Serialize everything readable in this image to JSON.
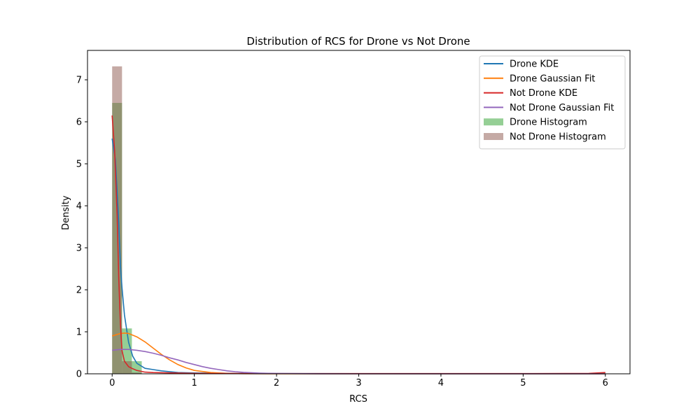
{
  "chart_data": {
    "type": "histogram+line",
    "title": "Distribution of RCS for Drone vs Not Drone",
    "xlabel": "RCS",
    "ylabel": "Density",
    "xlim": [
      -0.3,
      6.3
    ],
    "ylim": [
      0,
      7.7
    ],
    "x_ticks": [
      0,
      1,
      2,
      3,
      4,
      5,
      6
    ],
    "y_ticks": [
      0,
      1,
      2,
      3,
      4,
      5,
      6,
      7
    ],
    "grid": false,
    "legend_position": "top-right",
    "histograms": [
      {
        "name": "Drone Histogram",
        "color": "#2ca02c",
        "opacity": 0.5,
        "bins": [
          {
            "x0": 0.0,
            "x1": 0.12,
            "density": 6.45
          },
          {
            "x0": 0.12,
            "x1": 0.24,
            "density": 1.08
          },
          {
            "x0": 0.24,
            "x1": 0.36,
            "density": 0.3
          }
        ]
      },
      {
        "name": "Not Drone Histogram",
        "color": "#8c564b",
        "opacity": 0.5,
        "bins": [
          {
            "x0": 0.0,
            "x1": 0.12,
            "density": 7.32
          },
          {
            "x0": 0.12,
            "x1": 0.24,
            "density": 0.3
          },
          {
            "x0": 0.24,
            "x1": 0.36,
            "density": 0.03
          }
        ]
      }
    ],
    "series": [
      {
        "name": "Drone KDE",
        "color": "#1f77b4",
        "x": [
          0,
          0.04,
          0.08,
          0.1,
          0.12,
          0.15,
          0.2,
          0.25,
          0.3,
          0.4,
          0.5,
          0.6,
          0.8,
          1.0,
          1.5,
          2,
          3,
          4,
          5,
          6
        ],
        "y": [
          5.6,
          5.1,
          3.6,
          2.6,
          2.05,
          1.4,
          0.75,
          0.42,
          0.25,
          0.13,
          0.1,
          0.07,
          0.03,
          0.02,
          0.01,
          0.005,
          0.003,
          0.002,
          0.002,
          0.002
        ]
      },
      {
        "name": "Drone Gaussian Fit",
        "color": "#ff7f0e",
        "x": [
          0,
          0.05,
          0.1,
          0.15,
          0.2,
          0.3,
          0.4,
          0.5,
          0.6,
          0.7,
          0.8,
          0.9,
          1.0,
          1.2,
          1.4,
          1.6,
          2,
          3,
          4,
          5,
          6
        ],
        "y": [
          0.9,
          0.93,
          0.96,
          0.97,
          0.96,
          0.88,
          0.76,
          0.61,
          0.46,
          0.33,
          0.22,
          0.14,
          0.08,
          0.03,
          0.01,
          0.003,
          0.0,
          0.0,
          0.0,
          0.0,
          0.0
        ]
      },
      {
        "name": "Not Drone KDE",
        "color": "#d62728",
        "x": [
          0,
          0.03,
          0.06,
          0.08,
          0.1,
          0.12,
          0.15,
          0.2,
          0.25,
          0.3,
          0.4,
          0.5,
          1,
          2,
          3,
          4,
          5,
          5.5,
          5.8,
          6
        ],
        "y": [
          6.15,
          5.3,
          3.8,
          2.3,
          1.2,
          0.55,
          0.3,
          0.17,
          0.12,
          0.08,
          0.04,
          0.03,
          0.01,
          0.005,
          0.005,
          0.005,
          0.005,
          0.006,
          0.01,
          0.03
        ]
      },
      {
        "name": "Not Drone Gaussian Fit",
        "color": "#9467bd",
        "x": [
          0,
          0.1,
          0.2,
          0.3,
          0.4,
          0.5,
          0.6,
          0.7,
          0.8,
          0.9,
          1.0,
          1.1,
          1.2,
          1.3,
          1.4,
          1.5,
          1.6,
          1.8,
          2.0,
          2.5,
          3,
          4,
          5,
          6
        ],
        "y": [
          0.56,
          0.58,
          0.58,
          0.56,
          0.53,
          0.49,
          0.44,
          0.38,
          0.33,
          0.27,
          0.22,
          0.17,
          0.13,
          0.1,
          0.07,
          0.05,
          0.035,
          0.016,
          0.007,
          0.001,
          0.0,
          0.0,
          0.0,
          0.0
        ]
      }
    ],
    "legend": [
      {
        "label": "Drone KDE",
        "kind": "line",
        "color": "#1f77b4"
      },
      {
        "label": "Drone Gaussian Fit",
        "kind": "line",
        "color": "#ff7f0e"
      },
      {
        "label": "Not Drone KDE",
        "kind": "line",
        "color": "#d62728"
      },
      {
        "label": "Not Drone Gaussian Fit",
        "kind": "line",
        "color": "#9467bd"
      },
      {
        "label": "Drone Histogram",
        "kind": "patch",
        "color": "#2ca02c"
      },
      {
        "label": "Not Drone Histogram",
        "kind": "patch",
        "color": "#8c564b"
      }
    ]
  }
}
